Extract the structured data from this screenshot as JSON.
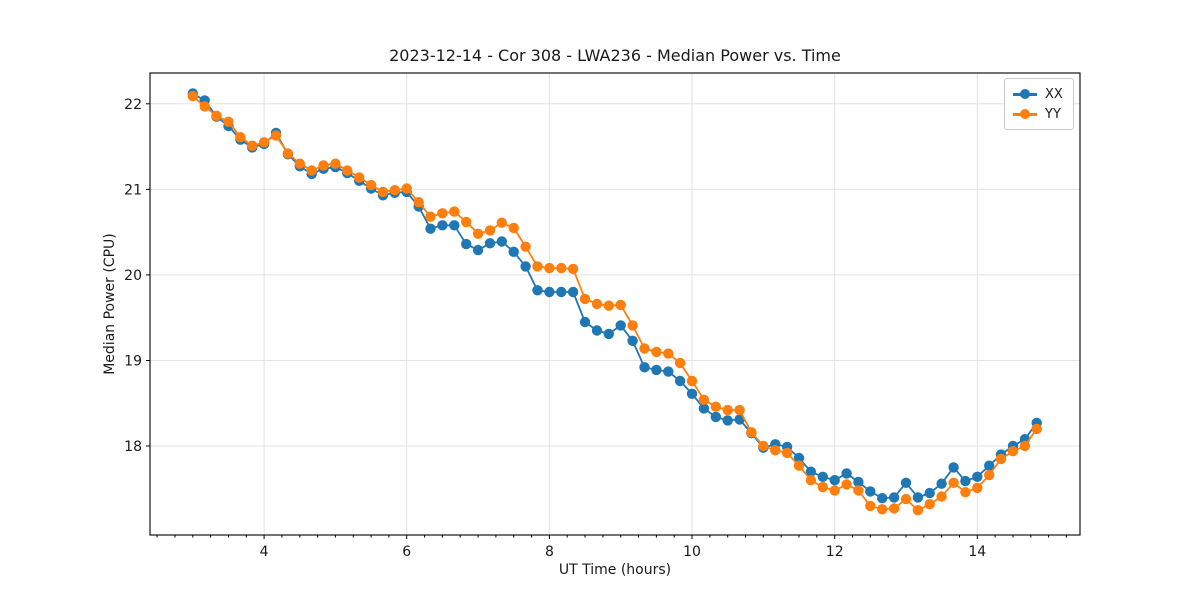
{
  "chart_data": {
    "type": "line",
    "title": "2023-12-14 - Cor 308 - LWA236 - Median Power vs. Time",
    "xlabel": "UT Time (hours)",
    "ylabel": "Median Power (CPU)",
    "xlim": [
      2.4,
      15.44
    ],
    "ylim": [
      16.96,
      22.36
    ],
    "xticks": [
      4,
      6,
      8,
      10,
      12,
      14
    ],
    "yticks": [
      18,
      19,
      20,
      21,
      22
    ],
    "x_minor_tick_step": 0.25,
    "grid": true,
    "legend_position": "upper right",
    "x": [
      3.0,
      3.167,
      3.333,
      3.5,
      3.667,
      3.833,
      4.0,
      4.167,
      4.333,
      4.5,
      4.667,
      4.833,
      5.0,
      5.167,
      5.333,
      5.5,
      5.667,
      5.833,
      6.0,
      6.167,
      6.333,
      6.5,
      6.667,
      6.833,
      7.0,
      7.167,
      7.333,
      7.5,
      7.667,
      7.833,
      8.0,
      8.167,
      8.333,
      8.5,
      8.667,
      8.833,
      9.0,
      9.167,
      9.333,
      9.5,
      9.667,
      9.833,
      10.0,
      10.167,
      10.333,
      10.5,
      10.667,
      10.833,
      11.0,
      11.167,
      11.333,
      11.5,
      11.667,
      11.833,
      12.0,
      12.167,
      12.333,
      12.5,
      12.667,
      12.833,
      13.0,
      13.167,
      13.333,
      13.5,
      13.667,
      13.833,
      14.0,
      14.167,
      14.333,
      14.5,
      14.667,
      14.833
    ],
    "series": [
      {
        "name": "XX",
        "color": "#1f77b4",
        "marker": "circle",
        "values": [
          22.12,
          22.04,
          21.85,
          21.74,
          21.58,
          21.49,
          21.53,
          21.66,
          21.41,
          21.27,
          21.18,
          21.24,
          21.26,
          21.19,
          21.1,
          21.01,
          20.93,
          20.96,
          20.97,
          20.8,
          20.54,
          20.58,
          20.58,
          20.36,
          20.29,
          20.37,
          20.39,
          20.27,
          20.1,
          19.82,
          19.8,
          19.8,
          19.8,
          19.45,
          19.35,
          19.31,
          19.41,
          19.23,
          18.92,
          18.89,
          18.87,
          18.76,
          18.61,
          18.44,
          18.34,
          18.3,
          18.31,
          18.15,
          17.98,
          18.02,
          17.99,
          17.86,
          17.7,
          17.64,
          17.6,
          17.68,
          17.58,
          17.47,
          17.39,
          17.4,
          17.57,
          17.4,
          17.45,
          17.56,
          17.75,
          17.59,
          17.64,
          17.77,
          17.9,
          18.0,
          18.08,
          18.27
        ]
      },
      {
        "name": "YY",
        "color": "#ff7f0e",
        "marker": "circle",
        "values": [
          22.09,
          21.97,
          21.86,
          21.79,
          21.61,
          21.51,
          21.55,
          21.63,
          21.42,
          21.3,
          21.22,
          21.28,
          21.3,
          21.22,
          21.14,
          21.05,
          20.97,
          20.99,
          21.01,
          20.85,
          20.68,
          20.72,
          20.74,
          20.62,
          20.48,
          20.52,
          20.61,
          20.55,
          20.33,
          20.1,
          20.08,
          20.08,
          20.07,
          19.72,
          19.66,
          19.64,
          19.65,
          19.41,
          19.14,
          19.1,
          19.08,
          18.97,
          18.76,
          18.54,
          18.46,
          18.42,
          18.42,
          18.16,
          18.0,
          17.95,
          17.92,
          17.77,
          17.6,
          17.52,
          17.48,
          17.55,
          17.48,
          17.3,
          17.26,
          17.27,
          17.38,
          17.25,
          17.32,
          17.41,
          17.57,
          17.46,
          17.51,
          17.66,
          17.85,
          17.94,
          18.0,
          18.2
        ]
      }
    ]
  }
}
